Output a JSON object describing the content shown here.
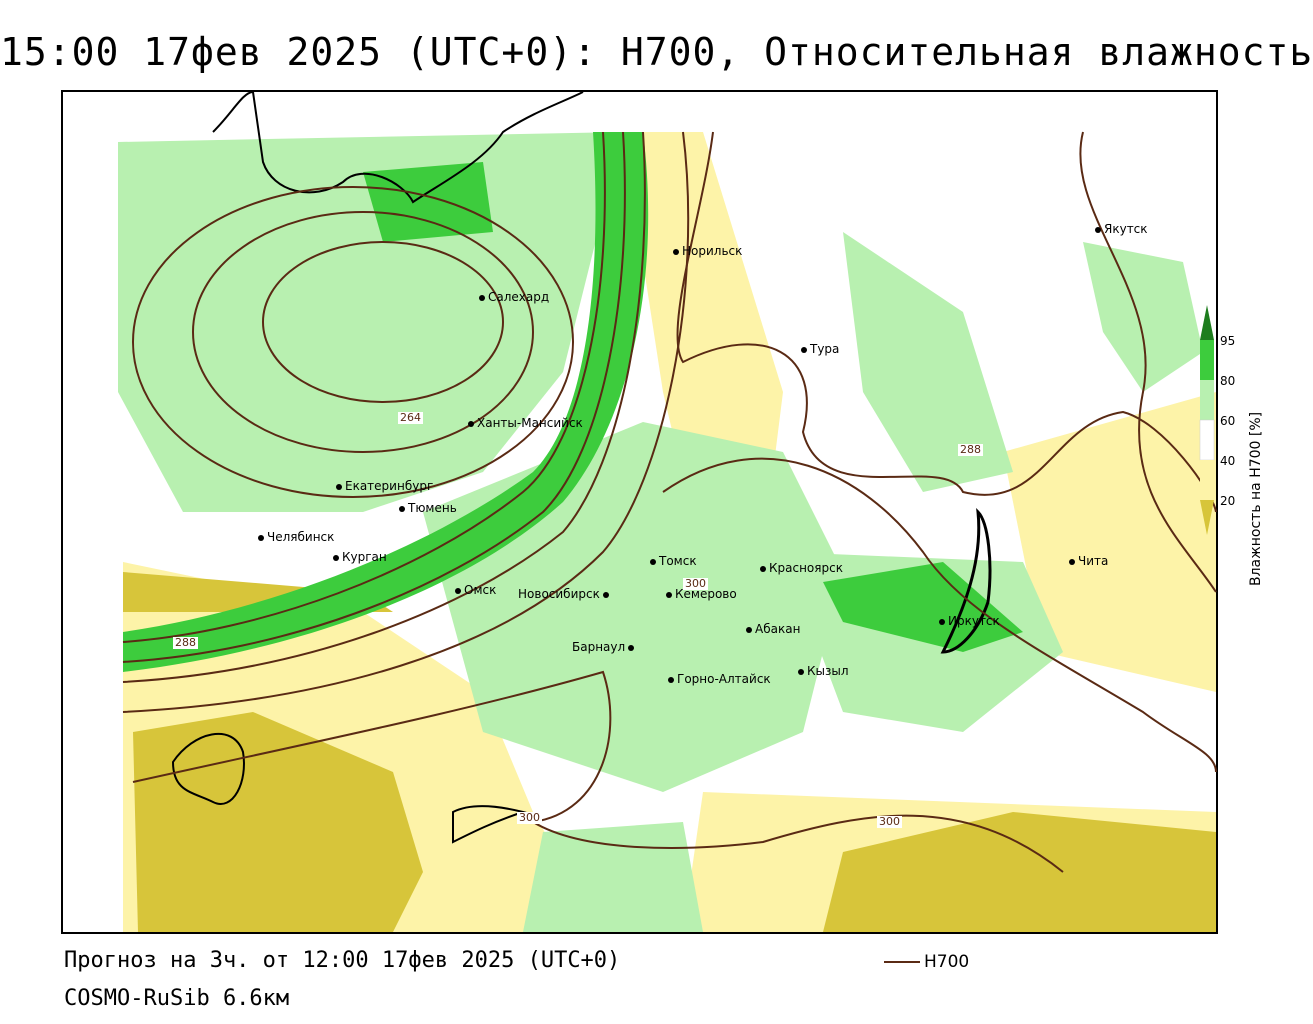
{
  "header": {
    "title": "15:00 17фев 2025 (UTC+0): H700, Относительная влажность"
  },
  "footer": {
    "forecast": "Прогноз на 3ч. от 12:00 17фев 2025 (UTC+0)",
    "model": "COSMO-RuSib 6.6км",
    "line_legend_label": "H700"
  },
  "legend": {
    "title": "Влажность на H700 [%]",
    "ticks": [
      "95",
      "80",
      "60",
      "40",
      "20"
    ],
    "colors": {
      "c95": "#1e7d1e",
      "c80": "#3dcc3d",
      "c60": "#b8f0b0",
      "c40": "#ffffff",
      "c20": "#fdf3a8",
      "c0": "#d7c53a"
    }
  },
  "map": {
    "cities": [
      {
        "name": "Якутск"
      },
      {
        "name": "Норильск"
      },
      {
        "name": "Салехард"
      },
      {
        "name": "Тура"
      },
      {
        "name": "Ханты-Мансийск"
      },
      {
        "name": "Екатеринбург"
      },
      {
        "name": "Тюмень"
      },
      {
        "name": "Челябинск"
      },
      {
        "name": "Курган"
      },
      {
        "name": "Омск"
      },
      {
        "name": "Томск"
      },
      {
        "name": "Красноярск"
      },
      {
        "name": "Новосибирск"
      },
      {
        "name": "Кемерово"
      },
      {
        "name": "Барнаул"
      },
      {
        "name": "Абакан"
      },
      {
        "name": "Иркутск"
      },
      {
        "name": "Чита"
      },
      {
        "name": "Горно-Алтайск"
      },
      {
        "name": "Кызыл"
      }
    ],
    "contour_labels": [
      "264",
      "288",
      "288",
      "300",
      "300",
      "300"
    ],
    "contour_color": "#5a2a14"
  }
}
